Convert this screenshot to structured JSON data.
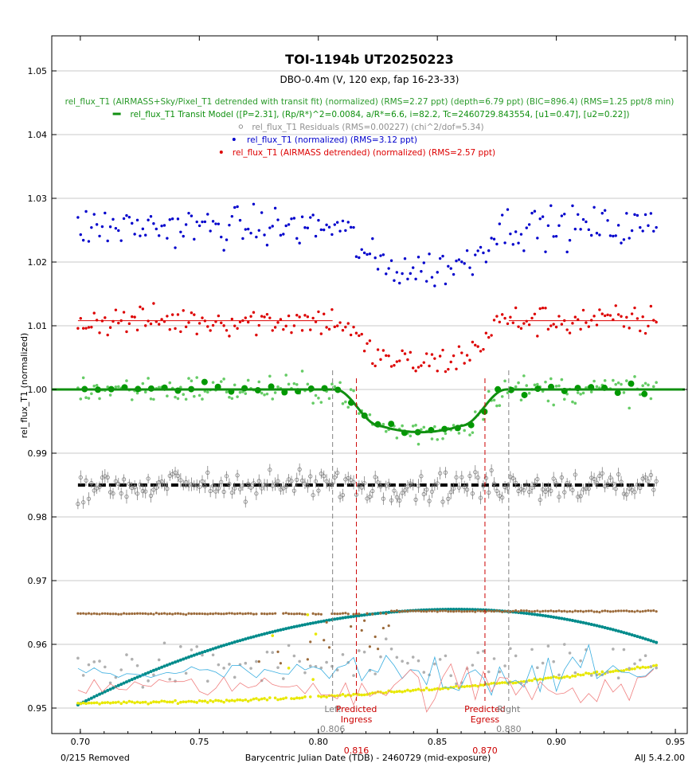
{
  "chart_data": {
    "type": "scatter",
    "title": "TOI-1194b UT20250223",
    "subtitle": "DBO-0.4m (V, 120 exp, fap 16-23-33)",
    "xlabel": "Barycentric Julian Date (TDB) - 2460729 (mid-exposure)",
    "ylabel": "rel_flux_T1 (normalized)",
    "xlim": [
      0.688,
      0.955
    ],
    "ylim": [
      0.946,
      1.0555
    ],
    "x_ticks": [
      0.7,
      0.75,
      0.8,
      0.85,
      0.9,
      0.95
    ],
    "x_tick_labels": [
      "0.70",
      "0.75",
      "0.80",
      "0.85",
      "0.90",
      "0.95"
    ],
    "y_ticks": [
      0.95,
      0.96,
      0.97,
      0.98,
      0.99,
      1.0,
      1.01,
      1.02,
      1.03,
      1.04,
      1.05
    ],
    "y_tick_labels": [
      "0.95",
      "0.96",
      "0.97",
      "0.98",
      "0.99",
      "1.00",
      "1.01",
      "1.02",
      "1.03",
      "1.04",
      "1.05"
    ],
    "grid": true,
    "legend_placement": "top",
    "legend": [
      {
        "text": "rel_flux_T1 (AIRMASS+Sky/Pixel_T1 detrended with transit fit) (normalized) (RMS=2.27 ppt) (depth=6.79 ppt) (BIC=896.4) (RMS=1.25 ppt/8 min)",
        "color": "#2a9a2a",
        "marker": "none"
      },
      {
        "text": "rel_flux_T1 Transit Model ([P=2.31], (Rp/R*)^2=0.0084, a/R*=6.6, i=82.2, Tc=2460729.843554, [u1=0.47], [u2=0.22])",
        "color": "#109010",
        "marker": "dash"
      },
      {
        "text": "rel_flux_T1 Residuals (RMS=0.00227) (chi^2/dof=5.34)",
        "color": "#909090",
        "marker": "circle"
      },
      {
        "text": "rel_flux_T1 (normalized) (RMS=3.12 ppt)",
        "color": "#0000cc",
        "marker": "dot"
      },
      {
        "text": "rel_flux_T1 (AIRMASS detrended) (normalized) (RMS=2.57 ppt)",
        "color": "#dd0000",
        "marker": "dot"
      }
    ],
    "markers": [
      {
        "label_lines": [
          "Left"
        ],
        "value_label": "0.806",
        "x": 0.806,
        "color": "#808080"
      },
      {
        "label_lines": [
          "Predicted",
          "Ingress"
        ],
        "value_label": "0.816",
        "x": 0.816,
        "color": "#cc0000"
      },
      {
        "label_lines": [
          "Predicted",
          "Egress"
        ],
        "value_label": "0.870",
        "x": 0.87,
        "color": "#cc0000"
      },
      {
        "label_lines": [
          "Right"
        ],
        "value_label": "0.880",
        "x": 0.88,
        "color": "#808080"
      }
    ],
    "x_range": [
      0.699,
      0.942
    ],
    "n_points": 215,
    "model": {
      "baseline": 1.0,
      "depth": 0.0067,
      "t1": 0.807,
      "t2": 0.826,
      "t3": 0.86,
      "t4": 0.879,
      "color": "#109010"
    },
    "series": [
      {
        "role": "raw",
        "offset": 1.0255,
        "color": "#0000cc",
        "noise": 0.0031,
        "transit_scale": 1.0
      },
      {
        "role": "detrended",
        "offset": 1.0108,
        "color": "#dd0000",
        "noise": 0.0024,
        "transit_scale": 1.0
      },
      {
        "role": "detrended_fit",
        "offset": 1.0,
        "color": "#66cc66",
        "noise": 0.0022,
        "transit_scale": 1.0
      },
      {
        "role": "binned",
        "offset": 1.0,
        "color": "#009900",
        "noise": 0.0008,
        "transit_scale": 1.0,
        "bin": 0.0056
      },
      {
        "role": "residuals",
        "offset": 0.985,
        "color": "#808080",
        "noise": 0.0023,
        "transit_scale": 0
      }
    ],
    "trend_lines": [
      {
        "role": "residual-baseline",
        "y": 0.985,
        "color": "#000000"
      },
      {
        "role": "red-baseline-pre",
        "y": 1.0108,
        "x": [
          0.699,
          0.806
        ],
        "color": "#dd0000"
      },
      {
        "role": "red-baseline-post",
        "y": 1.0108,
        "x": [
          0.88,
          0.942
        ],
        "color": "#dd0000"
      }
    ],
    "aux_series": [
      {
        "role": "airmass",
        "color": "#008b8b",
        "shape": "arc",
        "y0": 0.9505,
        "ypeak": 0.9655,
        "xpeak": 0.858,
        "yend": 0.9603
      },
      {
        "role": "sky-brown",
        "color": "#9b6a3a",
        "level": 0.9648,
        "end_level": 0.9652
      },
      {
        "role": "sky-yellow",
        "color": "#e8e800",
        "start": 0.9508,
        "end": 0.9566
      },
      {
        "role": "width-gray",
        "color": "#b0b0b0",
        "base": 0.9565
      },
      {
        "role": "cyan-line",
        "color": "#3aaee0",
        "base": 0.9555
      },
      {
        "role": "pink-line",
        "color": "#f08080",
        "base": 0.9535
      }
    ]
  },
  "footer": {
    "removed": "0/215 Removed",
    "version": "AIJ 5.4.2.00"
  }
}
